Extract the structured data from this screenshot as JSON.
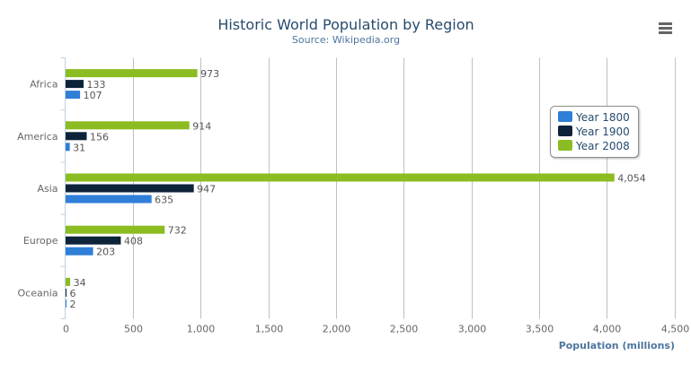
{
  "chart_data": {
    "type": "bar",
    "orientation": "horizontal",
    "title": "Historic World Population by Region",
    "subtitle": "Source: Wikipedia.org",
    "xlabel": "",
    "ylabel": "Population (millions)",
    "categories": [
      "Africa",
      "America",
      "Asia",
      "Europe",
      "Oceania"
    ],
    "series": [
      {
        "name": "Year 1800",
        "color": "#2f7ed8",
        "values": [
          107,
          31,
          635,
          203,
          2
        ]
      },
      {
        "name": "Year 1900",
        "color": "#0d233a",
        "values": [
          133,
          156,
          947,
          408,
          6
        ]
      },
      {
        "name": "Year 2008",
        "color": "#8bbc21",
        "values": [
          973,
          914,
          4054,
          732,
          34
        ]
      }
    ],
    "value_axis": {
      "range": [
        0,
        4500
      ],
      "ticks": [
        0,
        500,
        1000,
        1500,
        2000,
        2500,
        3000,
        3500,
        4000,
        4500
      ],
      "tick_labels": [
        "0",
        "500",
        "1,000",
        "1,500",
        "2,000",
        "2,500",
        "3,000",
        "3,500",
        "4,000",
        "4,500"
      ]
    },
    "grid": true,
    "data_labels": true,
    "legend_placement": "right, floating"
  },
  "menu_icon": "hamburger-menu-icon"
}
